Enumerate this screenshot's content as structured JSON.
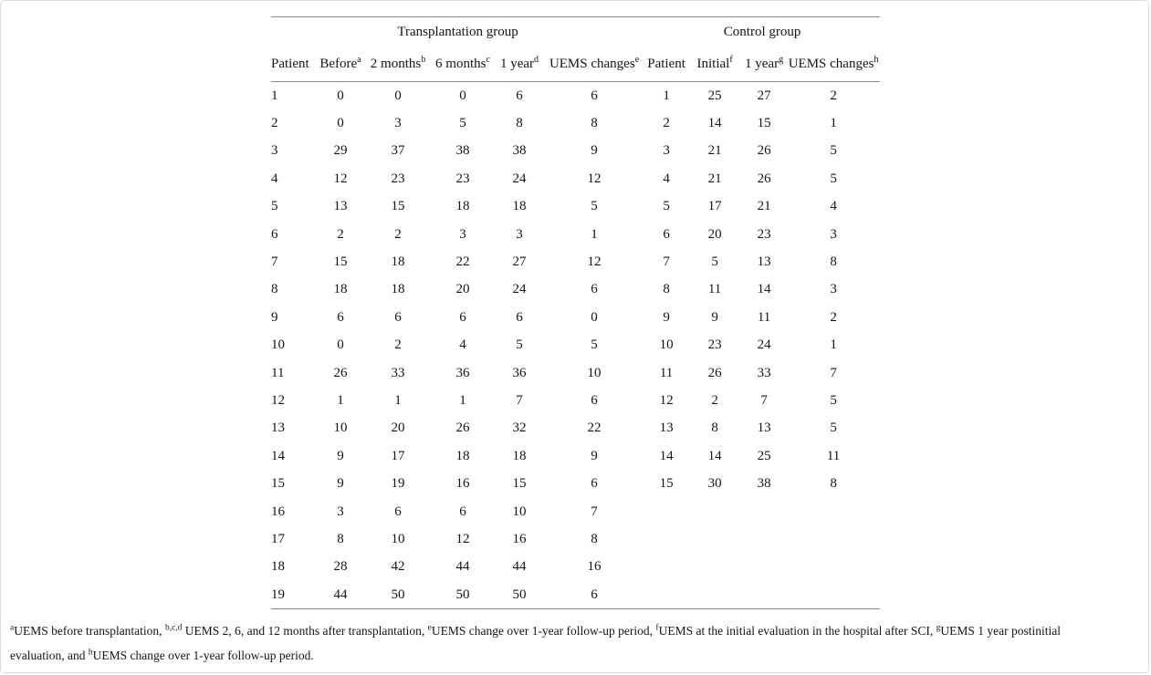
{
  "colors": {
    "rule": "#8c8c8c",
    "text": "#141414",
    "page_border": "#dcdcdc",
    "background": "#ffffff"
  },
  "table": {
    "group_headers": [
      "Transplantation group",
      "Control group"
    ],
    "columns": [
      {
        "label": "Patient",
        "sup": ""
      },
      {
        "label": "Before",
        "sup": "a"
      },
      {
        "label": "2 months",
        "sup": "b"
      },
      {
        "label": "6 months",
        "sup": "c"
      },
      {
        "label": "1 year",
        "sup": "d"
      },
      {
        "label": "UEMS changes",
        "sup": "e"
      },
      {
        "label": "Patient",
        "sup": ""
      },
      {
        "label": "Initial",
        "sup": "f"
      },
      {
        "label": "1 year",
        "sup": "g"
      },
      {
        "label": "UEMS changes",
        "sup": "h"
      }
    ],
    "rows": [
      [
        "1",
        "0",
        "0",
        "0",
        "6",
        "6",
        "1",
        "25",
        "27",
        "2"
      ],
      [
        "2",
        "0",
        "3",
        "5",
        "8",
        "8",
        "2",
        "14",
        "15",
        "1"
      ],
      [
        "3",
        "29",
        "37",
        "38",
        "38",
        "9",
        "3",
        "21",
        "26",
        "5"
      ],
      [
        "4",
        "12",
        "23",
        "23",
        "24",
        "12",
        "4",
        "21",
        "26",
        "5"
      ],
      [
        "5",
        "13",
        "15",
        "18",
        "18",
        "5",
        "5",
        "17",
        "21",
        "4"
      ],
      [
        "6",
        "2",
        "2",
        "3",
        "3",
        "1",
        "6",
        "20",
        "23",
        "3"
      ],
      [
        "7",
        "15",
        "18",
        "22",
        "27",
        "12",
        "7",
        "5",
        "13",
        "8"
      ],
      [
        "8",
        "18",
        "18",
        "20",
        "24",
        "6",
        "8",
        "11",
        "14",
        "3"
      ],
      [
        "9",
        "6",
        "6",
        "6",
        "6",
        "0",
        "9",
        "9",
        "11",
        "2"
      ],
      [
        "10",
        "0",
        "2",
        "4",
        "5",
        "5",
        "10",
        "23",
        "24",
        "1"
      ],
      [
        "11",
        "26",
        "33",
        "36",
        "36",
        "10",
        "11",
        "26",
        "33",
        "7"
      ],
      [
        "12",
        "1",
        "1",
        "1",
        "7",
        "6",
        "12",
        "2",
        "7",
        "5"
      ],
      [
        "13",
        "10",
        "20",
        "26",
        "32",
        "22",
        "13",
        "8",
        "13",
        "5"
      ],
      [
        "14",
        "9",
        "17",
        "18",
        "18",
        "9",
        "14",
        "14",
        "25",
        "11"
      ],
      [
        "15",
        "9",
        "19",
        "16",
        "15",
        "6",
        "15",
        "30",
        "38",
        "8"
      ],
      [
        "16",
        "3",
        "6",
        "6",
        "10",
        "7",
        "",
        "",
        "",
        ""
      ],
      [
        "17",
        "8",
        "10",
        "12",
        "16",
        "8",
        "",
        "",
        "",
        ""
      ],
      [
        "18",
        "28",
        "42",
        "44",
        "44",
        "16",
        "",
        "",
        "",
        ""
      ],
      [
        "19",
        "44",
        "50",
        "50",
        "50",
        "6",
        "",
        "",
        "",
        ""
      ]
    ]
  },
  "footnote": {
    "segments": [
      {
        "sup": "a"
      },
      {
        "text": "UEMS before transplantation, "
      },
      {
        "sup": "b,c,d"
      },
      {
        "text": " UEMS 2, 6, and 12 months after transplantation, "
      },
      {
        "sup": "e"
      },
      {
        "text": "UEMS change over 1-year follow-up period, "
      },
      {
        "sup": "f"
      },
      {
        "text": "UEMS at the initial evaluation in the hospital after SCI, "
      },
      {
        "sup": "g"
      },
      {
        "text": "UEMS 1 year postinitial"
      },
      {
        "br": true
      },
      {
        "text": "evaluation, and "
      },
      {
        "sup": "h"
      },
      {
        "text": "UEMS change over 1-year follow-up period."
      }
    ]
  }
}
